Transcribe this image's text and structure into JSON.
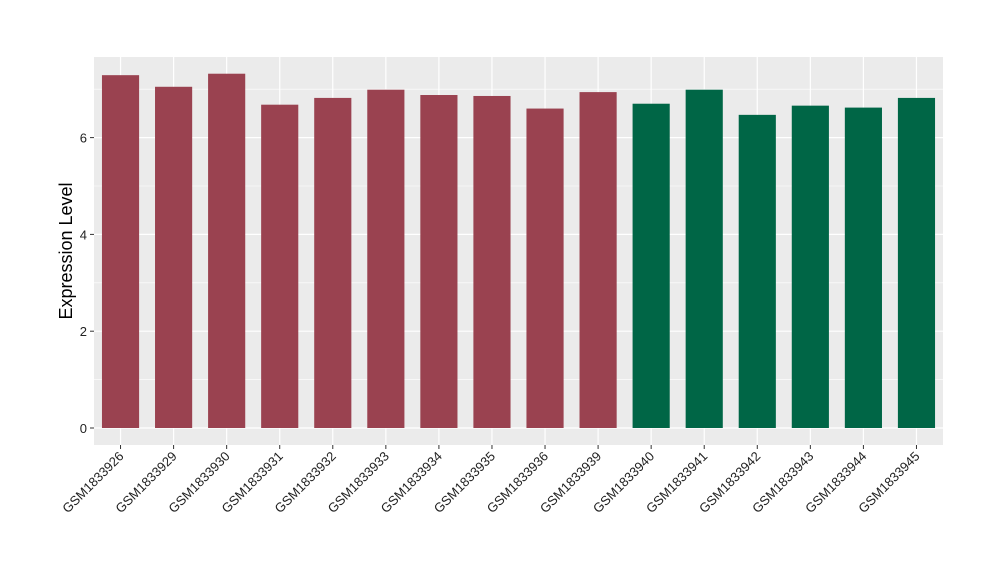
{
  "chart_data": {
    "type": "bar",
    "title": "",
    "xlabel": "",
    "ylabel": "Expression Level",
    "ylim": [
      0,
      7.7
    ],
    "yticks": [
      0,
      2,
      4,
      6
    ],
    "grid": true,
    "categories": [
      "GSM1833926",
      "GSM1833929",
      "GSM1833930",
      "GSM1833931",
      "GSM1833932",
      "GSM1833933",
      "GSM1833934",
      "GSM1833935",
      "GSM1833936",
      "GSM1833939",
      "GSM1833940",
      "GSM1833941",
      "GSM1833942",
      "GSM1833943",
      "GSM1833944",
      "GSM1833945"
    ],
    "values": [
      7.29,
      7.05,
      7.32,
      6.68,
      6.82,
      6.99,
      6.88,
      6.86,
      6.6,
      6.94,
      6.7,
      6.99,
      6.47,
      6.66,
      6.62,
      6.82
    ],
    "groups": [
      1,
      1,
      1,
      1,
      1,
      1,
      1,
      1,
      1,
      1,
      2,
      2,
      2,
      2,
      2,
      2
    ],
    "colors": {
      "group1": "#9A4250",
      "group2": "#006646",
      "panel": "#EBEBEB",
      "grid": "#FFFFFF"
    }
  }
}
